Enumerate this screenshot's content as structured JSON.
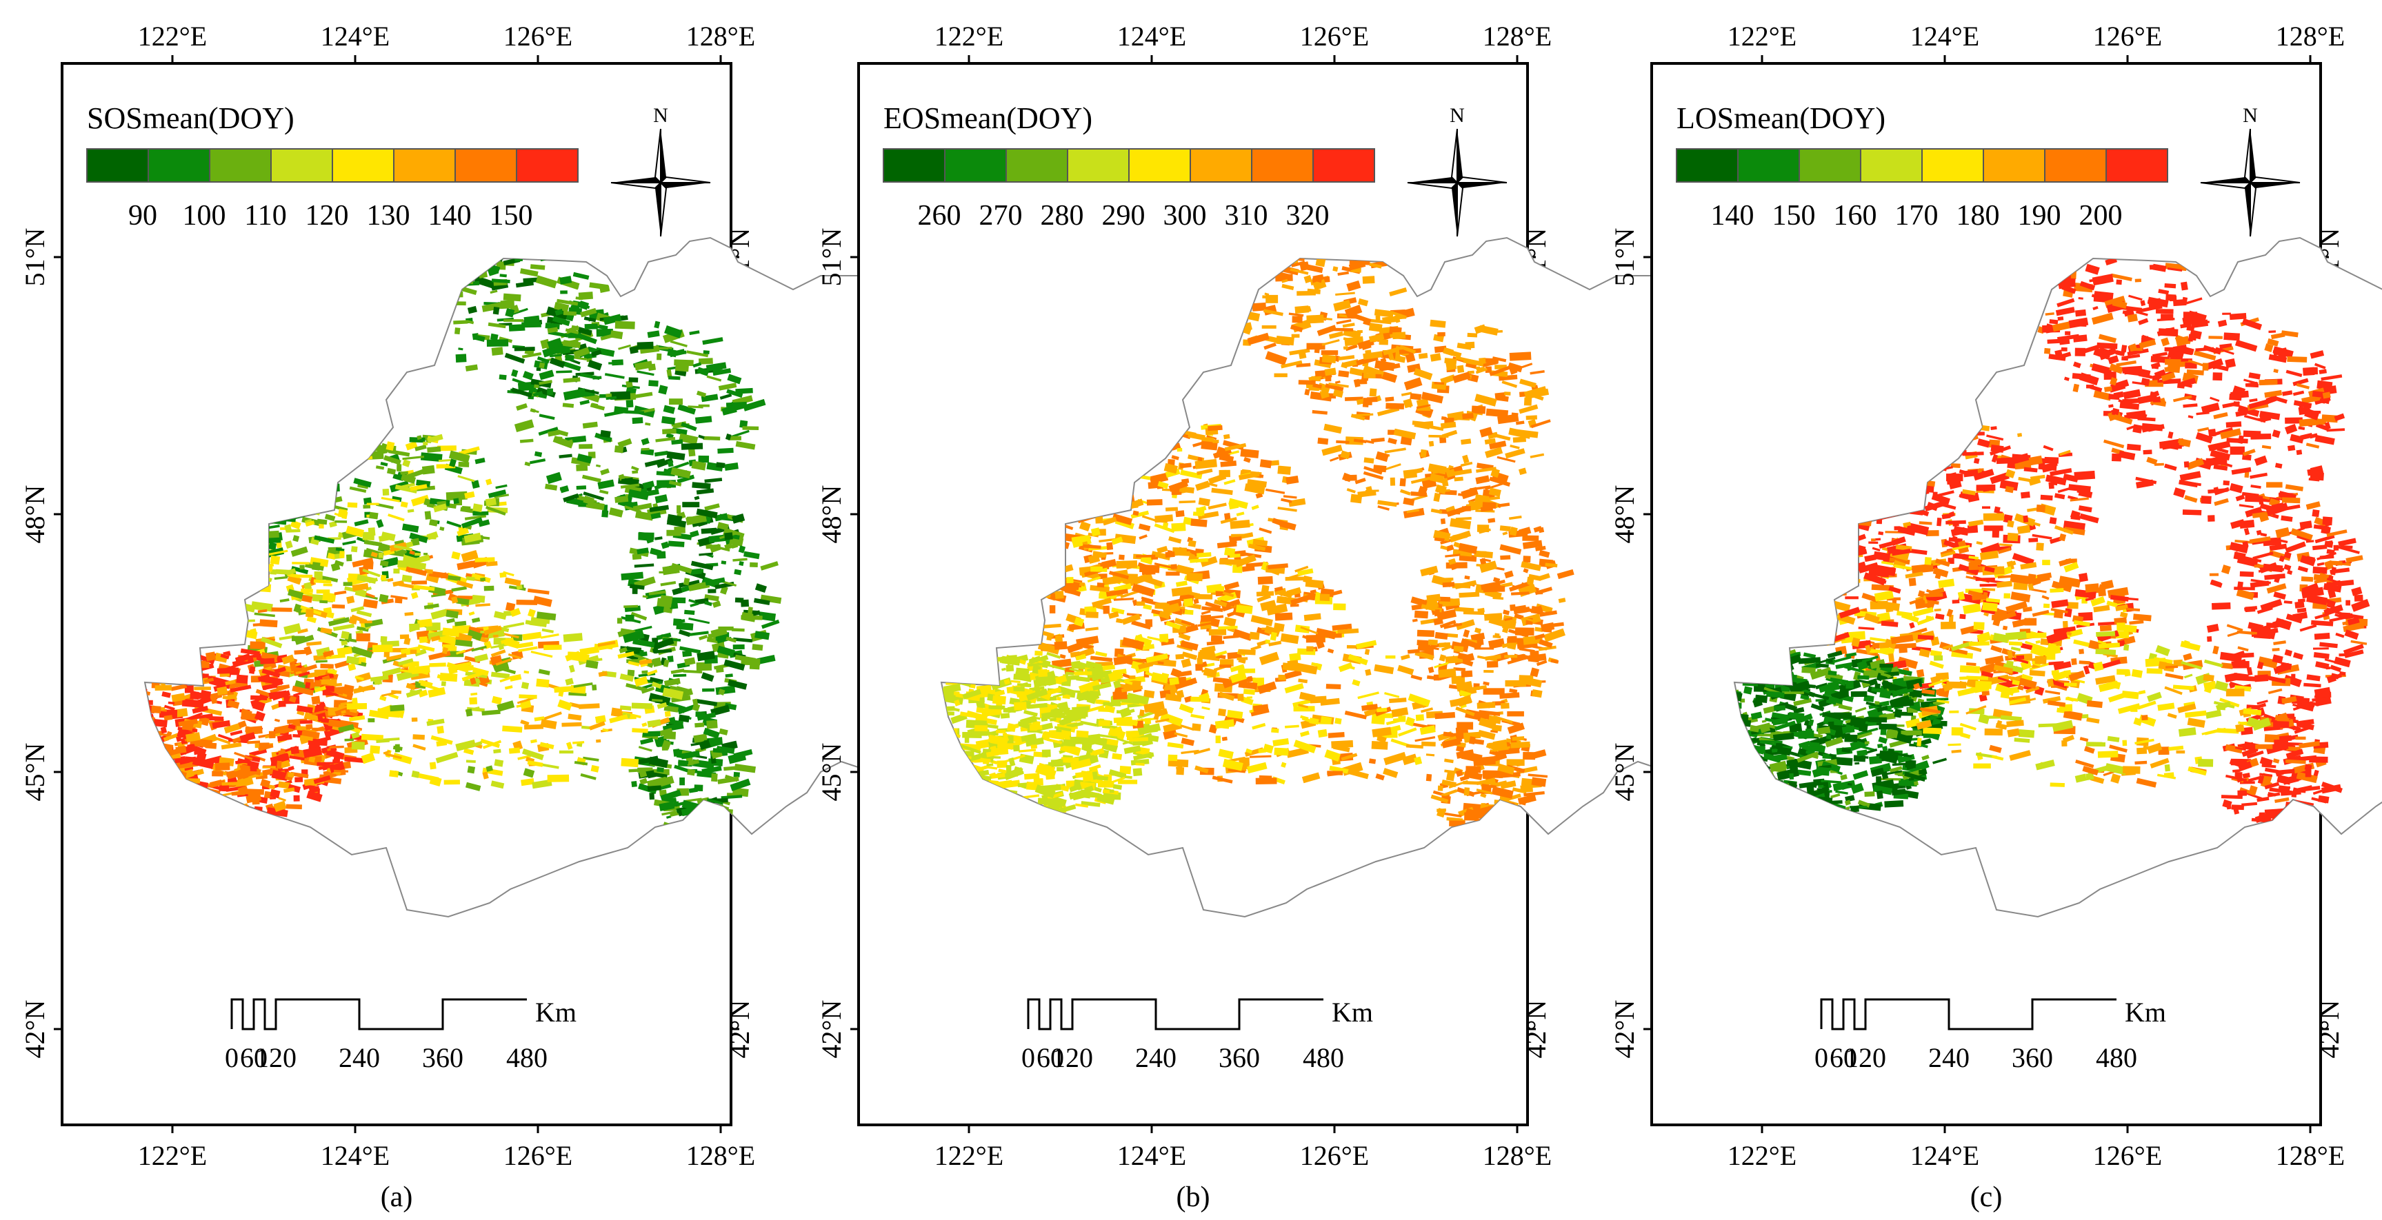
{
  "figure": {
    "lon_ticks": [
      "122°E",
      "124°E",
      "126°E",
      "128°E"
    ],
    "lat_ticks": [
      "51°N",
      "48°N",
      "45°N",
      "42°N"
    ],
    "north_label": "N",
    "scale_bar": {
      "ticks": [
        "0",
        "60",
        "120",
        "240",
        "360",
        "480"
      ],
      "unit": "Km"
    }
  },
  "panels": [
    {
      "id": "a",
      "caption": "(a)",
      "legend_title": "SOSmean(DOY)",
      "legend_values": [
        "90",
        "100",
        "110",
        "120",
        "130",
        "140",
        "150"
      ],
      "colors": [
        "#006400",
        "#0b8a0b",
        "#6bb00f",
        "#c9e01a",
        "#ffe600",
        "#ffaa00",
        "#ff7a00",
        "#ff2a12"
      ]
    },
    {
      "id": "b",
      "caption": "(b)",
      "legend_title": "EOSmean(DOY)",
      "legend_values": [
        "260",
        "270",
        "280",
        "290",
        "300",
        "310",
        "320"
      ],
      "colors": [
        "#006400",
        "#0b8a0b",
        "#6bb00f",
        "#c9e01a",
        "#ffe600",
        "#ffaa00",
        "#ff7a00",
        "#ff2a12"
      ]
    },
    {
      "id": "c",
      "caption": "(c)",
      "legend_title": "LOSmean(DOY)",
      "legend_values": [
        "140",
        "150",
        "160",
        "170",
        "180",
        "190",
        "200"
      ],
      "colors": [
        "#006400",
        "#0b8a0b",
        "#6bb00f",
        "#c9e01a",
        "#ffe600",
        "#ffaa00",
        "#ff7a00",
        "#ff2a12"
      ]
    }
  ]
}
